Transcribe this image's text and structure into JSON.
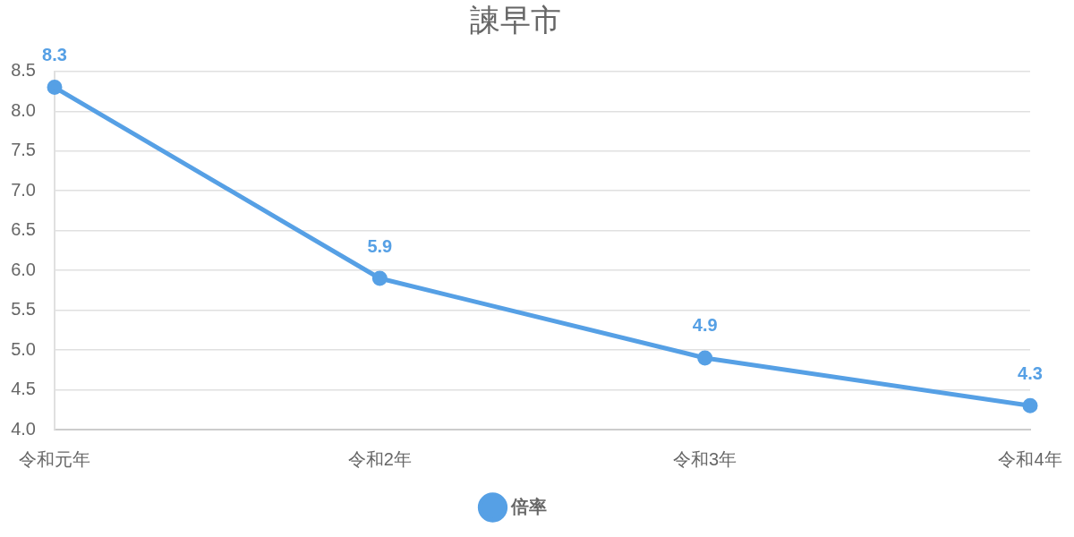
{
  "chart_data": {
    "type": "line",
    "title": "諫早市",
    "categories": [
      "令和元年",
      "令和2年",
      "令和3年",
      "令和4年"
    ],
    "series": [
      {
        "name": "倍率",
        "color": "#56a0e5",
        "values": [
          8.3,
          5.9,
          4.9,
          4.3
        ]
      }
    ],
    "ylim": [
      4,
      8.5
    ],
    "yticks": [
      {
        "value": 4,
        "label": "4.0"
      },
      4.5,
      {
        "value": 5,
        "label": "5.0"
      },
      5.5,
      {
        "value": 6,
        "label": "6.0"
      },
      6.5,
      {
        "value": 7,
        "label": "7.0"
      },
      7.5,
      {
        "value": 8,
        "label": "8.0"
      },
      8.5
    ],
    "grid": "y",
    "legend": "bottom",
    "marker": "circle",
    "line_style": "solid",
    "data_labels": true
  }
}
